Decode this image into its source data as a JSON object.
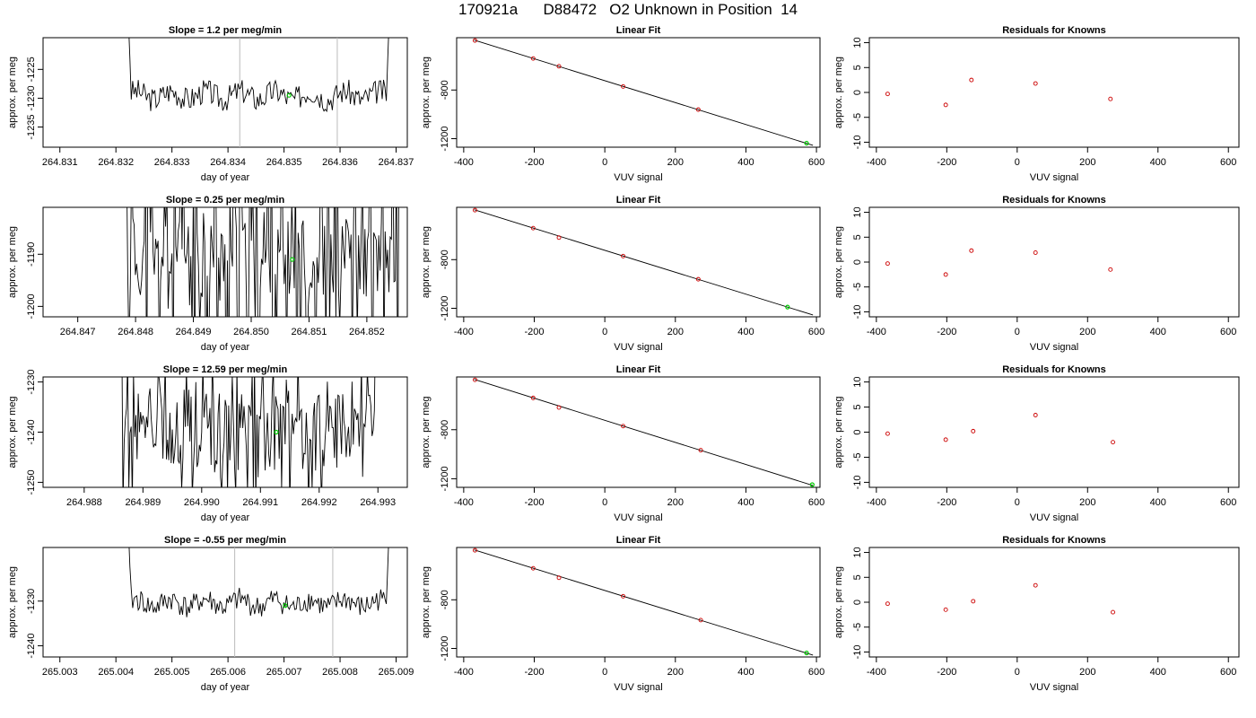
{
  "title": "170921a      D88472   O2 Unknown in Position  14",
  "chart_data": [
    {
      "type": "line",
      "title": "Slope =  1.2  per meg/min",
      "xlabel": "day of year",
      "ylabel": "approx. per meg",
      "xlim": [
        264.8307,
        264.8372
      ],
      "ylim": [
        -1238.5,
        -1219.5
      ],
      "xticks": [
        "264.831",
        "264.832",
        "264.833",
        "264.834",
        "264.835",
        "264.836",
        "264.837"
      ],
      "yticks": [
        "-1235",
        "-1230",
        "-1225"
      ],
      "vlines": [
        264.83421,
        264.83595
      ],
      "seed": 3,
      "x_start": 264.8322,
      "x_end": 264.8369,
      "center": -1229.5,
      "amplitude": 1.8,
      "volatility": "low",
      "point": {
        "x": 264.83509,
        "y": -1229.5
      }
    },
    {
      "type": "scatter",
      "title": "Linear Fit",
      "xlabel": "VUV signal",
      "ylabel": "approx. per meg",
      "xlim": [
        -420,
        610
      ],
      "ylim": [
        -1270,
        -370
      ],
      "xticks": [
        "-400",
        "-200",
        "0",
        "200",
        "400",
        "600"
      ],
      "yticks": [
        "-1200",
        "-800"
      ],
      "line": [
        [
          -370,
          -390
        ],
        [
          590,
          -1255
        ]
      ],
      "points": [
        [
          -368,
          -393
        ],
        [
          -203,
          -541
        ],
        [
          -130,
          -605
        ],
        [
          52,
          -771
        ],
        [
          265,
          -961
        ]
      ],
      "unknown": [
        572,
        -1237
      ]
    },
    {
      "type": "scatter",
      "title": "Residuals for Knowns",
      "xlabel": "VUV signal",
      "ylabel": "approx. per meg",
      "xlim": [
        -420,
        630
      ],
      "ylim": [
        -11,
        11
      ],
      "xticks": [
        "-400",
        "-200",
        "0",
        "200",
        "400",
        "600"
      ],
      "yticks": [
        "-10",
        "-5",
        "0",
        "5",
        "10"
      ],
      "points": [
        [
          -368,
          -0.3
        ],
        [
          -203,
          -2.5
        ],
        [
          -130,
          2.5
        ],
        [
          52,
          1.8
        ],
        [
          265,
          -1.3
        ]
      ]
    },
    {
      "type": "line",
      "title": "Slope =  0.25  per meg/min",
      "xlabel": "day of year",
      "ylabel": "approx. per meg",
      "xlim": [
        264.8464,
        264.8527
      ],
      "ylim": [
        -1202,
        -1181
      ],
      "xticks": [
        "264.847",
        "264.848",
        "264.849",
        "264.850",
        "264.851",
        "264.852"
      ],
      "yticks": [
        "-1200",
        "-1190"
      ],
      "vlines": [],
      "seed": 11,
      "x_start": 264.8478,
      "x_end": 264.8526,
      "center": -1191,
      "amplitude": 30,
      "volatility": "high",
      "point": {
        "x": 264.85071,
        "y": -1191
      }
    },
    {
      "type": "scatter",
      "title": "Linear Fit",
      "xlabel": "VUV signal",
      "ylabel": "approx. per meg",
      "xlim": [
        -420,
        610
      ],
      "ylim": [
        -1270,
        -370
      ],
      "xticks": [
        "-400",
        "-200",
        "0",
        "200",
        "400",
        "600"
      ],
      "yticks": [
        "-1200",
        "-800"
      ],
      "line": [
        [
          -370,
          -390
        ],
        [
          590,
          -1255
        ]
      ],
      "points": [
        [
          -368,
          -393
        ],
        [
          -203,
          -541
        ],
        [
          -130,
          -619
        ],
        [
          52,
          -771
        ],
        [
          265,
          -961
        ]
      ],
      "unknown": [
        518,
        -1190
      ]
    },
    {
      "type": "scatter",
      "title": "Residuals for Knowns",
      "xlabel": "VUV signal",
      "ylabel": "approx. per meg",
      "xlim": [
        -420,
        630
      ],
      "ylim": [
        -11,
        11
      ],
      "xticks": [
        "-400",
        "-200",
        "0",
        "200",
        "400",
        "600"
      ],
      "yticks": [
        "-10",
        "-5",
        "0",
        "5",
        "10"
      ],
      "points": [
        [
          -368,
          -0.3
        ],
        [
          -203,
          -2.5
        ],
        [
          -130,
          2.3
        ],
        [
          52,
          1.9
        ],
        [
          265,
          -1.5
        ]
      ]
    },
    {
      "type": "line",
      "title": "Slope =  12.59  per meg/min",
      "xlabel": "day of year",
      "ylabel": "approx. per meg",
      "xlim": [
        264.9873,
        264.9935
      ],
      "ylim": [
        -1251,
        -1229
      ],
      "xticks": [
        "264.988",
        "264.989",
        "264.990",
        "264.991",
        "264.992",
        "264.993"
      ],
      "yticks": [
        "-1250",
        "-1240",
        "-1230"
      ],
      "vlines": [],
      "seed": 27,
      "x_start": 264.9886,
      "x_end": 264.993,
      "center": -1240,
      "amplitude": 14,
      "volatility": "high",
      "point": {
        "x": 264.99127,
        "y": -1240
      }
    },
    {
      "type": "scatter",
      "title": "Linear Fit",
      "xlabel": "VUV signal",
      "ylabel": "approx. per meg",
      "xlim": [
        -420,
        610
      ],
      "ylim": [
        -1270,
        -370
      ],
      "xticks": [
        "-400",
        "-200",
        "0",
        "200",
        "400",
        "600"
      ],
      "yticks": [
        "-1200",
        "-800"
      ],
      "line": [
        [
          -370,
          -390
        ],
        [
          590,
          -1255
        ]
      ],
      "points": [
        [
          -368,
          -393
        ],
        [
          -203,
          -541
        ],
        [
          -130,
          -619
        ],
        [
          52,
          -771
        ],
        [
          272,
          -967
        ]
      ],
      "unknown": [
        588,
        -1248
      ]
    },
    {
      "type": "scatter",
      "title": "Residuals for Knowns",
      "xlabel": "VUV signal",
      "ylabel": "approx. per meg",
      "xlim": [
        -420,
        630
      ],
      "ylim": [
        -11,
        11
      ],
      "xticks": [
        "-400",
        "-200",
        "0",
        "200",
        "400",
        "600"
      ],
      "yticks": [
        "-10",
        "-5",
        "0",
        "5",
        "10"
      ],
      "points": [
        [
          -368,
          -0.3
        ],
        [
          -203,
          -1.5
        ],
        [
          -125,
          0.2
        ],
        [
          52,
          3.4
        ],
        [
          272,
          -2.0
        ]
      ]
    },
    {
      "type": "line",
      "title": "Slope =  -0.55  per meg/min",
      "xlabel": "day of year",
      "ylabel": "approx. per meg",
      "xlim": [
        265.0027,
        265.0092
      ],
      "ylim": [
        -1242.5,
        -1218
      ],
      "xticks": [
        "265.003",
        "265.004",
        "265.005",
        "265.006",
        "265.007",
        "265.008",
        "265.009"
      ],
      "yticks": [
        "-1240",
        "-1230"
      ],
      "vlines": [
        265.00612,
        265.00787
      ],
      "seed": 41,
      "x_start": 265.0042,
      "x_end": 265.0089,
      "center": -1230.5,
      "amplitude": 2.2,
      "volatility": "low",
      "point": {
        "x": 265.00702,
        "y": -1231
      }
    },
    {
      "type": "scatter",
      "title": "Linear Fit",
      "xlabel": "VUV signal",
      "ylabel": "approx. per meg",
      "xlim": [
        -420,
        610
      ],
      "ylim": [
        -1270,
        -370
      ],
      "xticks": [
        "-400",
        "-200",
        "0",
        "200",
        "400",
        "600"
      ],
      "yticks": [
        "-1200",
        "-800"
      ],
      "line": [
        [
          -370,
          -390
        ],
        [
          590,
          -1255
        ]
      ],
      "points": [
        [
          -368,
          -393
        ],
        [
          -203,
          -541
        ],
        [
          -130,
          -619
        ],
        [
          52,
          -771
        ],
        [
          272,
          -967
        ]
      ],
      "unknown": [
        572,
        -1237
      ]
    },
    {
      "type": "scatter",
      "title": "Residuals for Knowns",
      "xlabel": "VUV signal",
      "ylabel": "approx. per meg",
      "xlim": [
        -420,
        630
      ],
      "ylim": [
        -11,
        11
      ],
      "xticks": [
        "-400",
        "-200",
        "0",
        "200",
        "400",
        "600"
      ],
      "yticks": [
        "-10",
        "-5",
        "0",
        "5",
        "10"
      ],
      "points": [
        [
          -368,
          -0.3
        ],
        [
          -203,
          -1.5
        ],
        [
          -125,
          0.2
        ],
        [
          52,
          3.4
        ],
        [
          272,
          -2.0
        ]
      ]
    }
  ],
  "colors": {
    "axis": "#000000",
    "known_points": "#cc0000",
    "unknown_point": "#00cc00",
    "vline": "#bbbbbb",
    "trace": "#000000"
  }
}
